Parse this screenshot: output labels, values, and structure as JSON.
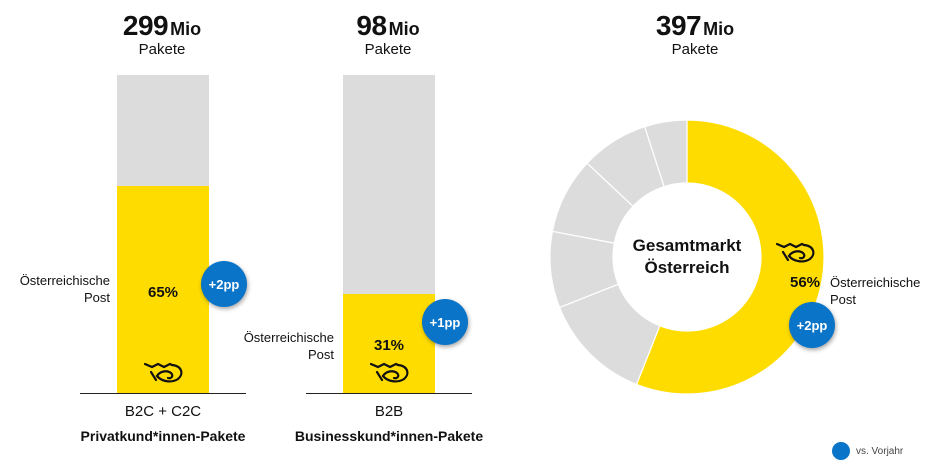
{
  "colors": {
    "post_yellow": "#ffdc00",
    "remainder_gray": "#dcdcdc",
    "change_blue": "#0a74c9"
  },
  "icons": {
    "post_logo": "posthorn-icon"
  },
  "panels": [
    {
      "total_value": "299",
      "total_unit": "Mio",
      "total_label": "Pakete",
      "share_label": "65%",
      "change_label": "+2pp",
      "post_label_line1": "Österreichische",
      "post_label_line2": "Post",
      "category": "B2C + C2C",
      "segment": "Privatkund*innen-Pakete"
    },
    {
      "total_value": "98",
      "total_unit": "Mio",
      "total_label": "Pakete",
      "share_label": "31%",
      "change_label": "+1pp",
      "post_label_line1": "Österreichische",
      "post_label_line2": "Post",
      "category": "B2B",
      "segment": "Businesskund*innen-Pakete"
    },
    {
      "total_value": "397",
      "total_unit": "Mio",
      "total_label": "Pakete",
      "share_label": "56%",
      "change_label": "+2pp",
      "post_label_line1": "Österreichische",
      "post_label_line2": "Post",
      "center_line1": "Gesamtmarkt",
      "center_line2": "Österreich"
    }
  ],
  "legend": {
    "label": "vs. Vorjahr"
  },
  "chart_data": [
    {
      "type": "bar",
      "categories": [
        "B2C + C2C"
      ],
      "total_million_parcels": 299,
      "series": [
        {
          "name": "Österreichische Post",
          "values": [
            65
          ]
        }
      ],
      "unit": "%",
      "ylim": [
        0,
        100
      ],
      "change_vs_prior_year_pp": 2
    },
    {
      "type": "bar",
      "categories": [
        "B2B"
      ],
      "total_million_parcels": 98,
      "series": [
        {
          "name": "Österreichische Post",
          "values": [
            31
          ]
        }
      ],
      "unit": "%",
      "ylim": [
        0,
        100
      ],
      "change_vs_prior_year_pp": 1
    },
    {
      "type": "pie",
      "total_million_parcels": 397,
      "slices": [
        {
          "label": "Österreichische Post",
          "value": 56
        },
        {
          "label": "",
          "value": 13
        },
        {
          "label": "",
          "value": 9
        },
        {
          "label": "",
          "value": 9
        },
        {
          "label": "",
          "value": 8
        },
        {
          "label": "",
          "value": 5
        }
      ],
      "change_vs_prior_year_pp": 2
    }
  ]
}
